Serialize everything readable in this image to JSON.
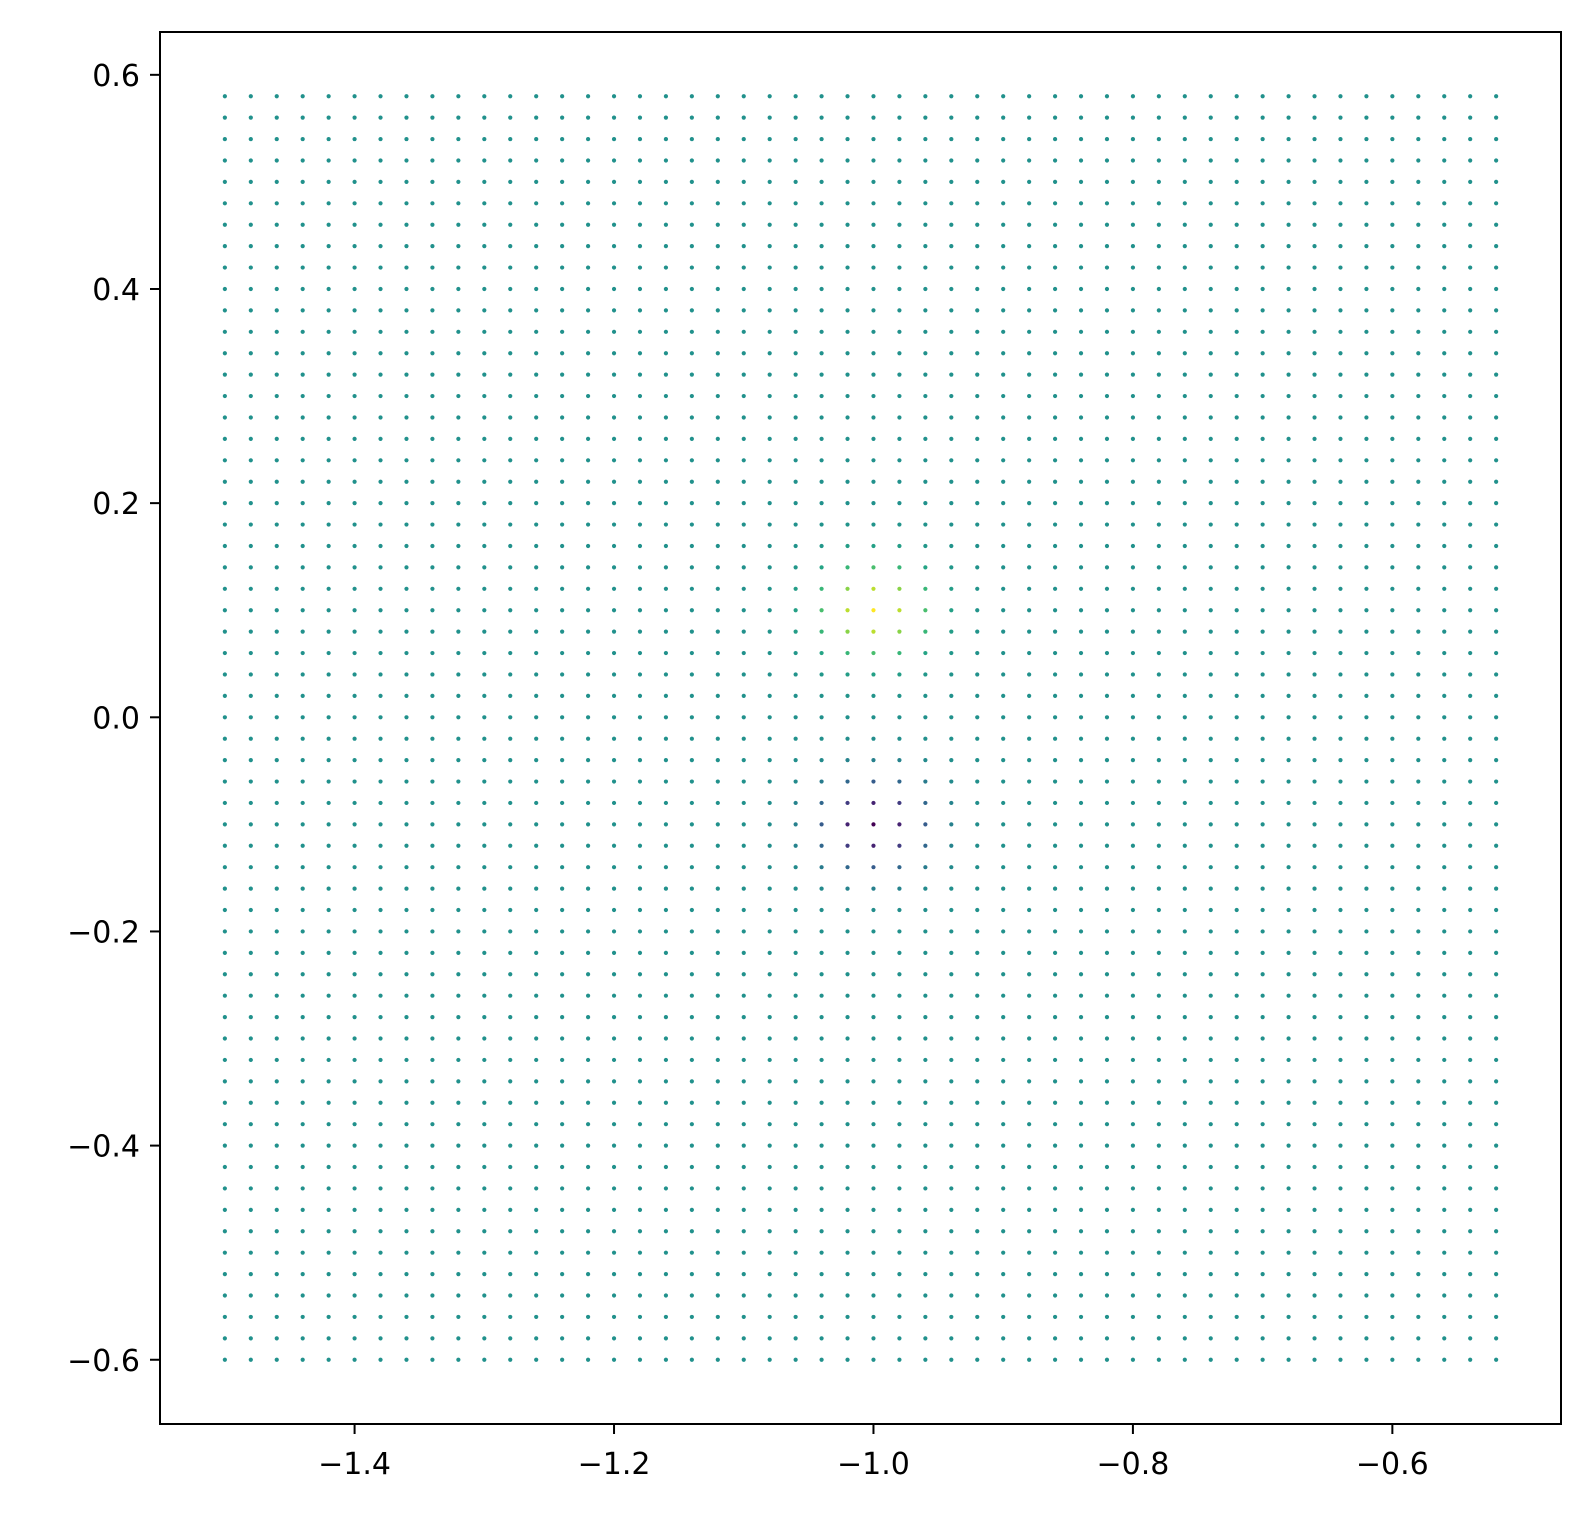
{
  "chart_data": {
    "type": "scatter",
    "title": "",
    "xlabel": "",
    "ylabel": "",
    "xlim": [
      -1.55,
      -0.47
    ],
    "ylim": [
      -0.66,
      0.64
    ],
    "x_ticks": [
      -1.4,
      -1.2,
      -1.0,
      -0.8,
      -0.6
    ],
    "y_ticks": [
      -0.6,
      -0.4,
      -0.2,
      0.0,
      0.2,
      0.4,
      0.6
    ],
    "x_tick_labels": [
      "−1.4",
      "−1.2",
      "−1.0",
      "−0.8",
      "−0.6"
    ],
    "y_tick_labels": [
      "−0.6",
      "−0.4",
      "−0.2",
      "0.0",
      "0.2",
      "0.4",
      "0.6"
    ],
    "grid": false,
    "legend": "none",
    "colormap": "viridis",
    "points": {
      "x_start": -1.5,
      "x_end": -0.52,
      "x_step": 0.02,
      "y_start": -0.6,
      "y_end": 0.58,
      "y_step": 0.02,
      "background_value": 0.5,
      "positive_peak": {
        "x": -1.0,
        "y": 0.1,
        "amplitude": 0.5,
        "sigma": 0.03
      },
      "negative_peak": {
        "x": -1.0,
        "y": -0.1,
        "amplitude": -0.5,
        "sigma": 0.03
      }
    },
    "colors": {
      "low": "#440154",
      "mid": "#21918c",
      "high": "#fde725"
    }
  }
}
